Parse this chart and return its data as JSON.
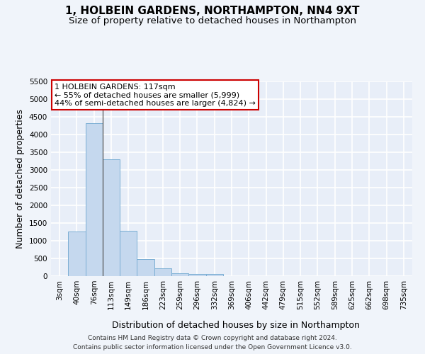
{
  "title": "1, HOLBEIN GARDENS, NORTHAMPTON, NN4 9XT",
  "subtitle": "Size of property relative to detached houses in Northampton",
  "xlabel": "Distribution of detached houses by size in Northampton",
  "ylabel": "Number of detached properties",
  "footer_line1": "Contains HM Land Registry data © Crown copyright and database right 2024.",
  "footer_line2": "Contains public sector information licensed under the Open Government Licence v3.0.",
  "bar_labels": [
    "3sqm",
    "40sqm",
    "76sqm",
    "113sqm",
    "149sqm",
    "186sqm",
    "223sqm",
    "259sqm",
    "296sqm",
    "332sqm",
    "369sqm",
    "406sqm",
    "442sqm",
    "479sqm",
    "515sqm",
    "552sqm",
    "589sqm",
    "625sqm",
    "662sqm",
    "698sqm",
    "735sqm"
  ],
  "bar_values": [
    0,
    1270,
    4330,
    3300,
    1280,
    490,
    215,
    90,
    70,
    55,
    0,
    0,
    0,
    0,
    0,
    0,
    0,
    0,
    0,
    0,
    0
  ],
  "bar_color": "#c5d8ee",
  "bar_edge_color": "#7baed4",
  "background_color": "#f0f4fa",
  "plot_bg_color": "#e8eef8",
  "grid_color": "#ffffff",
  "ylim": [
    0,
    5500
  ],
  "yticks": [
    0,
    500,
    1000,
    1500,
    2000,
    2500,
    3000,
    3500,
    4000,
    4500,
    5000,
    5500
  ],
  "annotation_text": "1 HOLBEIN GARDENS: 117sqm\n← 55% of detached houses are smaller (5,999)\n44% of semi-detached houses are larger (4,824) →",
  "vline_x_idx": 2.5,
  "annotation_box_facecolor": "#ffffff",
  "annotation_box_edgecolor": "#cc0000",
  "title_fontsize": 11,
  "subtitle_fontsize": 9.5,
  "axis_label_fontsize": 9,
  "tick_fontsize": 7.5,
  "annotation_fontsize": 8,
  "footer_fontsize": 6.5
}
